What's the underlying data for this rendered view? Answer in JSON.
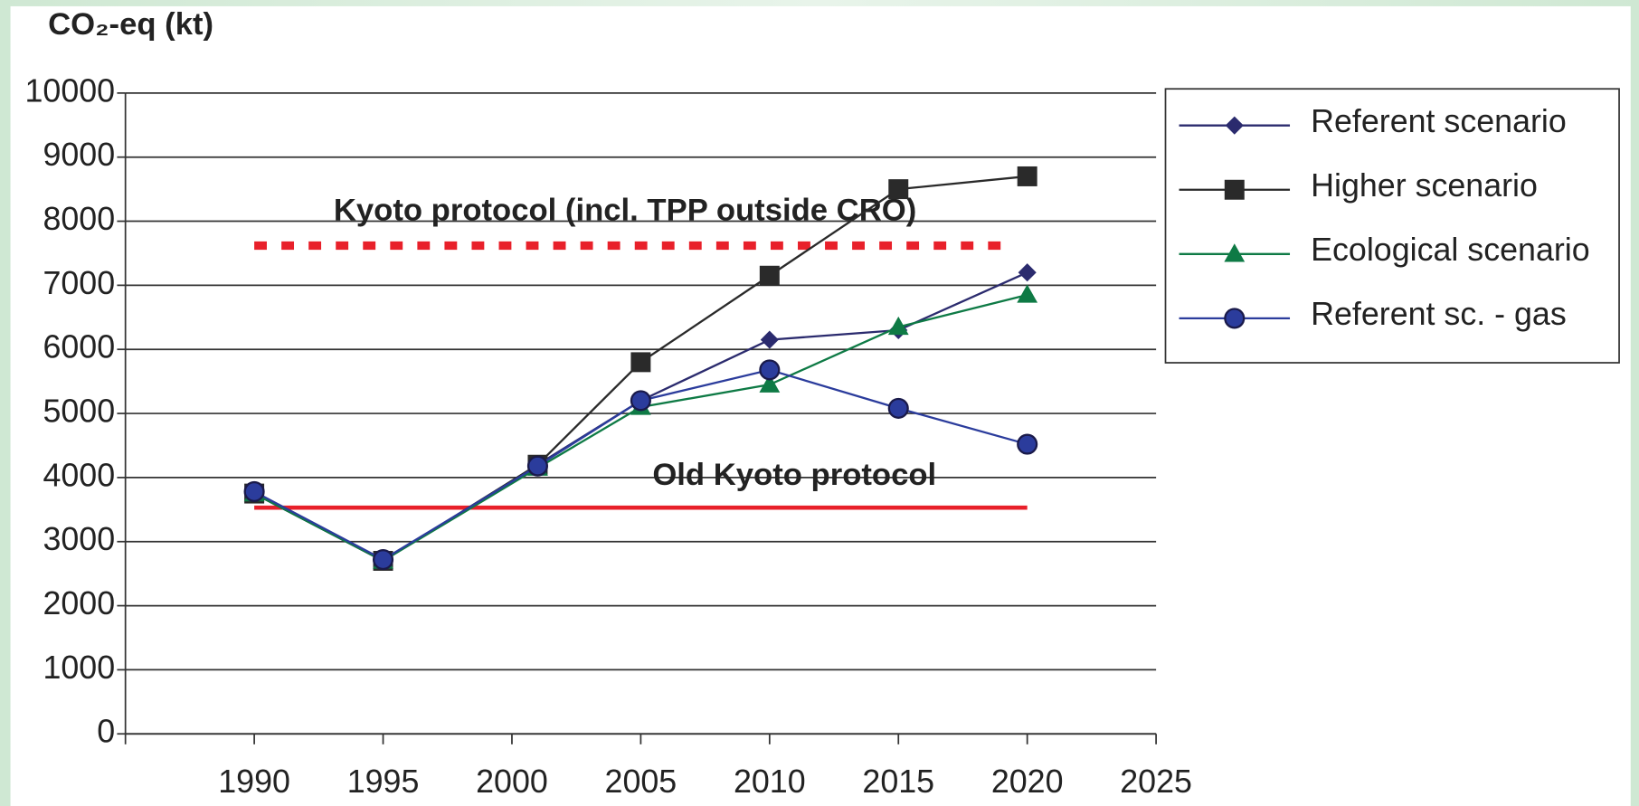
{
  "chart_data": {
    "type": "line",
    "y_label": "CO₂-eq (kt)",
    "xlim": [
      1985,
      2025
    ],
    "xticks": [
      1990,
      1995,
      2000,
      2005,
      2010,
      2015,
      2020,
      2025
    ],
    "ylim": [
      0,
      10000
    ],
    "yticks": [
      0,
      1000,
      2000,
      3000,
      4000,
      5000,
      6000,
      7000,
      8000,
      9000,
      10000
    ],
    "grid": true,
    "legend": "right",
    "x": [
      1990,
      1995,
      2001,
      2005,
      2010,
      2015,
      2020
    ],
    "series": [
      {
        "name": "Referent scenario",
        "color": "#2b2b6e",
        "marker": "diamond",
        "values": [
          3750,
          2700,
          4200,
          5200,
          6150,
          6300,
          7200
        ]
      },
      {
        "name": "Higher scenario",
        "color": "#2a2a2a",
        "marker": "square",
        "values": [
          3750,
          2700,
          4200,
          5800,
          7150,
          8500,
          8700
        ]
      },
      {
        "name": "Ecological scenario",
        "color": "#0e7a45",
        "marker": "triangle",
        "values": [
          3750,
          2700,
          4150,
          5100,
          5450,
          6350,
          6850
        ]
      },
      {
        "name": "Referent sc. - gas",
        "color": "#2b3c9c",
        "marker": "circle",
        "values": [
          3780,
          2720,
          4180,
          5200,
          5680,
          5080,
          4520
        ]
      }
    ],
    "reference_lines": [
      {
        "label": "Kyoto protocol (incl. TPP outside CRO)",
        "value": 7620,
        "x": [
          1990,
          2019.5
        ],
        "color": "#e8202a",
        "style": "dotted"
      },
      {
        "label": "Old Kyoto protocol",
        "value": 3530,
        "x": [
          1990,
          2020
        ],
        "color": "#e8202a",
        "style": "solid"
      }
    ]
  }
}
